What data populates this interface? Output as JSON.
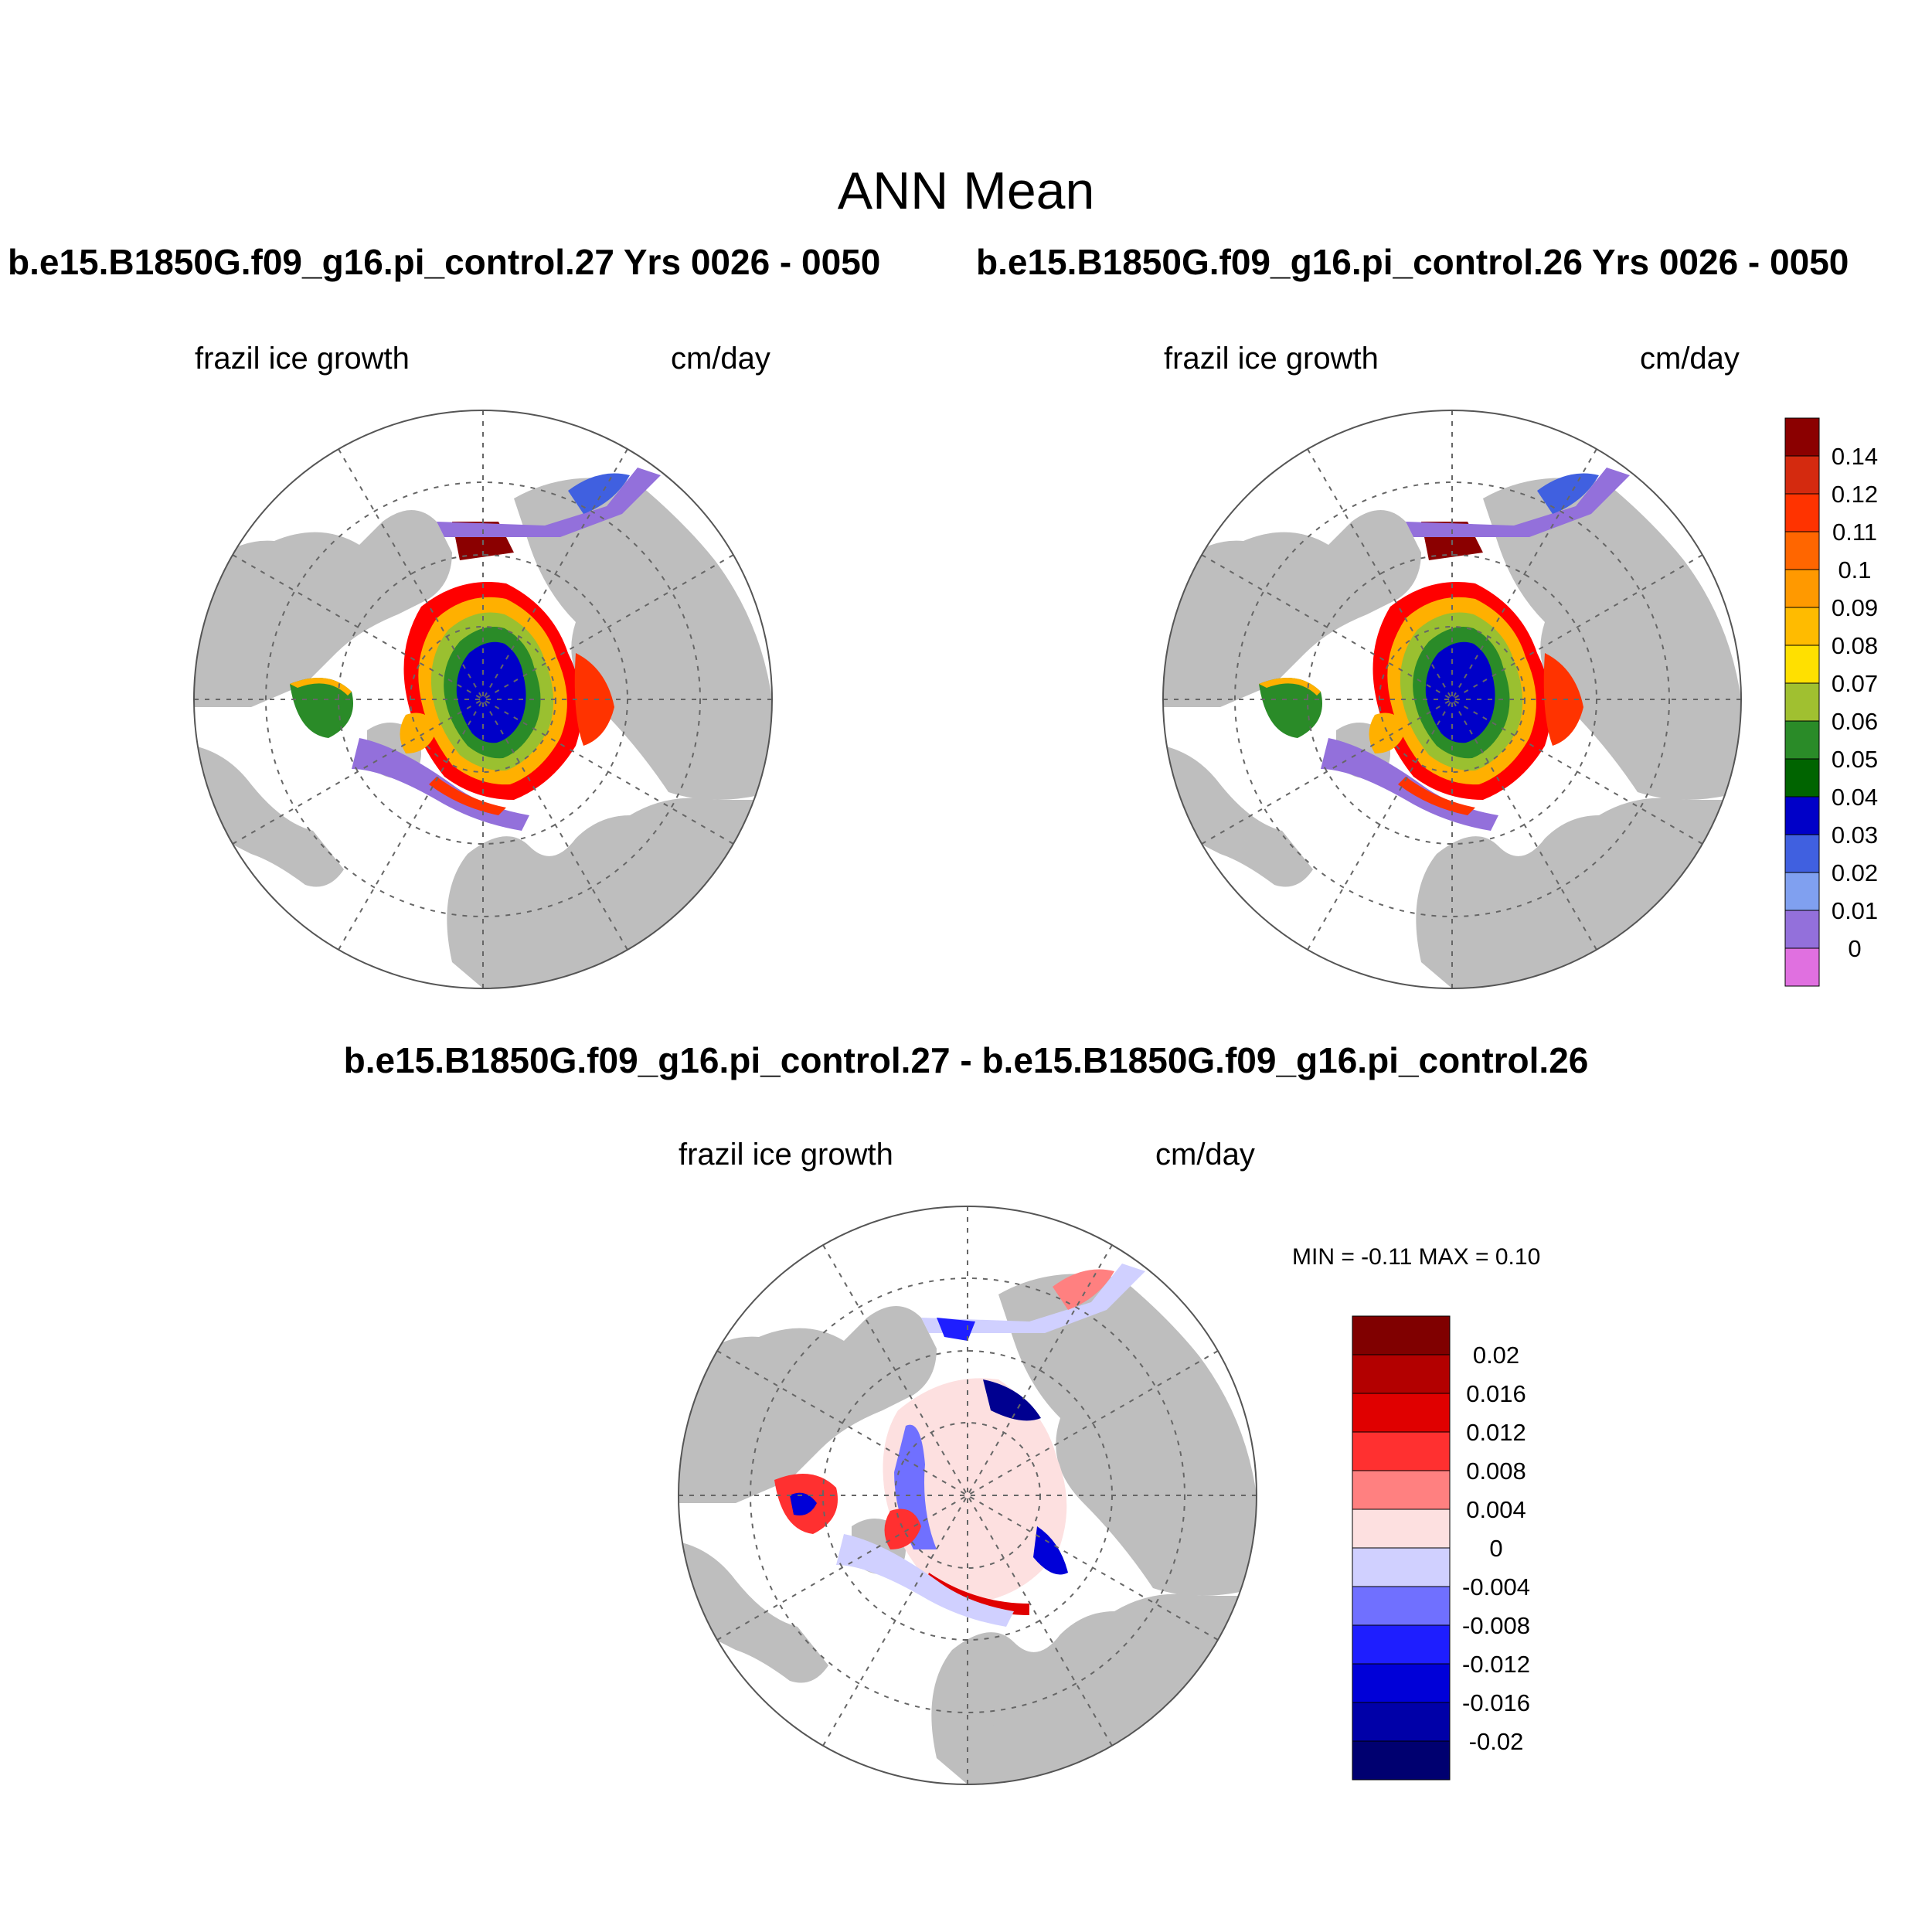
{
  "title": "ANN Mean",
  "case_left_title": "b.e15.B1850G.f09_g16.pi_control.27  Yrs 0026 - 0050",
  "case_right_title": "b.e15.B1850G.f09_g16.pi_control.26  Yrs 0026 - 0050",
  "diff_title": "b.e15.B1850G.f09_g16.pi_control.27 - b.e15.B1850G.f09_g16.pi_control.26",
  "panels": [
    {
      "variable": "frazil ice growth",
      "units": "cm/day"
    },
    {
      "variable": "frazil ice growth",
      "units": "cm/day"
    },
    {
      "variable": "frazil ice growth",
      "units": "cm/day"
    }
  ],
  "diff_stats": "MIN =  -0.11 MAX =   0.10",
  "colors": {
    "land": "#bebebe",
    "ocean_background": "#ffffff",
    "grid": "#666666"
  },
  "colorbar_main": {
    "labels": [
      "0.14",
      "0.12",
      "0.11",
      "0.1",
      "0.09",
      "0.08",
      "0.07",
      "0.06",
      "0.05",
      "0.04",
      "0.03",
      "0.02",
      "0.01",
      "0"
    ],
    "colors": [
      "#8b0000",
      "#d42a0f",
      "#ff3300",
      "#ff6600",
      "#ff9900",
      "#ffbb00",
      "#ffe000",
      "#a0c030",
      "#2a8b28",
      "#006400",
      "#0000c8",
      "#4060e0",
      "#80a0f0",
      "#9370db",
      "#e070e0"
    ]
  },
  "colorbar_diff": {
    "labels": [
      "0.02",
      "0.016",
      "0.012",
      "0.008",
      "0.004",
      "0",
      "-0.004",
      "-0.008",
      "-0.012",
      "-0.016",
      "-0.02"
    ],
    "colors": [
      "#800000",
      "#b30000",
      "#e00000",
      "#ff3030",
      "#ff8080",
      "#fde0e0",
      "#d0d0ff",
      "#7070ff",
      "#1e1eff",
      "#0000d8",
      "#0000a8",
      "#000070"
    ]
  }
}
